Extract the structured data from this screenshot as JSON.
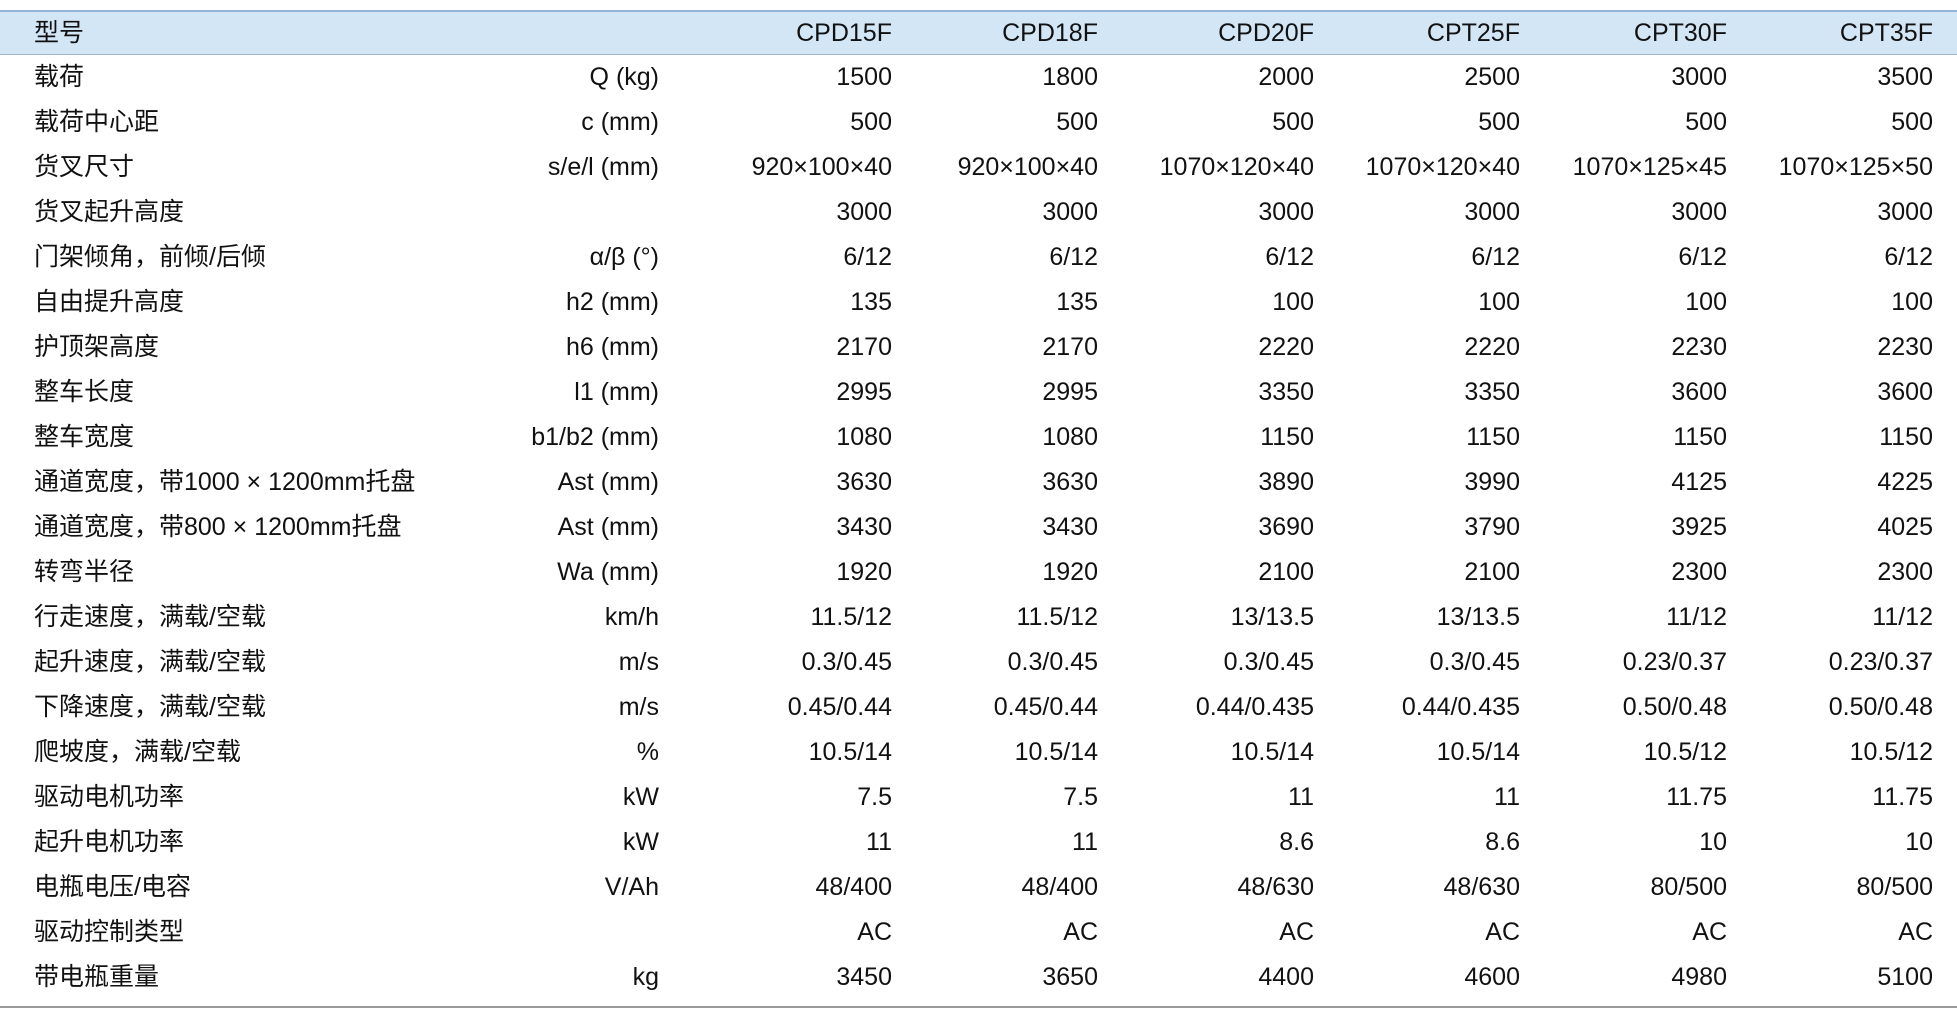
{
  "table": {
    "header": {
      "label": "型号",
      "models": [
        "CPD15F",
        "CPD18F",
        "CPD20F",
        "CPT25F",
        "CPT30F",
        "CPT35F"
      ]
    },
    "rows": [
      {
        "label": "载荷",
        "unit": "Q (kg)",
        "values": [
          "1500",
          "1800",
          "2000",
          "2500",
          "3000",
          "3500"
        ]
      },
      {
        "label": "载荷中心距",
        "unit": "c (mm)",
        "values": [
          "500",
          "500",
          "500",
          "500",
          "500",
          "500"
        ]
      },
      {
        "label": "货叉尺寸",
        "unit": "s/e/l (mm)",
        "values": [
          "920×100×40",
          "920×100×40",
          "1070×120×40",
          "1070×120×40",
          "1070×125×45",
          "1070×125×50"
        ]
      },
      {
        "label": "货叉起升高度",
        "values": [
          "3000",
          "3000",
          "3000",
          "3000",
          "3000",
          "3000"
        ]
      },
      {
        "label": "门架倾角，前倾/后倾",
        "unit": "α/β (°)",
        "values": [
          "6/12",
          "6/12",
          "6/12",
          "6/12",
          "6/12",
          "6/12"
        ]
      },
      {
        "label": "自由提升高度",
        "unit": "h2 (mm)",
        "values": [
          "135",
          "135",
          "100",
          "100",
          "100",
          "100"
        ]
      },
      {
        "label": "护顶架高度",
        "unit": "h6 (mm)",
        "values": [
          "2170",
          "2170",
          "2220",
          "2220",
          "2230",
          "2230"
        ]
      },
      {
        "label": "整车长度",
        "unit": "l1 (mm)",
        "values": [
          "2995",
          "2995",
          "3350",
          "3350",
          "3600",
          "3600"
        ]
      },
      {
        "label": "整车宽度",
        "unit": "b1/b2 (mm)",
        "values": [
          "1080",
          "1080",
          "1150",
          "1150",
          "1150",
          "1150"
        ]
      },
      {
        "label": "通道宽度，带1000 × 1200mm托盘",
        "unit": "Ast (mm)",
        "values": [
          "3630",
          "3630",
          "3890",
          "3990",
          "4125",
          "4225"
        ]
      },
      {
        "label": "通道宽度，带800 × 1200mm托盘",
        "unit": "Ast (mm)",
        "values": [
          "3430",
          "3430",
          "3690",
          "3790",
          "3925",
          "4025"
        ]
      },
      {
        "label": "转弯半径",
        "unit": "Wa (mm)",
        "values": [
          "1920",
          "1920",
          "2100",
          "2100",
          "2300",
          "2300"
        ]
      },
      {
        "label": "行走速度，满载/空载",
        "unit": "km/h",
        "values": [
          "11.5/12",
          "11.5/12",
          "13/13.5",
          "13/13.5",
          "11/12",
          "11/12"
        ]
      },
      {
        "label": "起升速度，满载/空载",
        "unit": "m/s",
        "values": [
          "0.3/0.45",
          "0.3/0.45",
          "0.3/0.45",
          "0.3/0.45",
          "0.23/0.37",
          "0.23/0.37"
        ]
      },
      {
        "label": "下降速度，满载/空载",
        "unit": "m/s",
        "values": [
          "0.45/0.44",
          "0.45/0.44",
          "0.44/0.435",
          "0.44/0.435",
          "0.50/0.48",
          "0.50/0.48"
        ]
      },
      {
        "label": "爬坡度，满载/空载",
        "unit": "%",
        "values": [
          "10.5/14",
          "10.5/14",
          "10.5/14",
          "10.5/14",
          "10.5/12",
          "10.5/12"
        ]
      },
      {
        "label": "驱动电机功率",
        "unit": "kW",
        "values": [
          "7.5",
          "7.5",
          "11",
          "11",
          "11.75",
          "11.75"
        ]
      },
      {
        "label": "起升电机功率",
        "unit": "kW",
        "values": [
          "11",
          "11",
          "8.6",
          "8.6",
          "10",
          "10"
        ]
      },
      {
        "label": "电瓶电压/电容",
        "unit": "V/Ah",
        "values": [
          "48/400",
          "48/400",
          "48/630",
          "48/630",
          "80/500",
          "80/500"
        ]
      },
      {
        "label": "驱动控制类型",
        "values": [
          "AC",
          "AC",
          "AC",
          "AC",
          "AC",
          "AC"
        ]
      },
      {
        "label": "带电瓶重量",
        "unit": "kg",
        "values": [
          "3450",
          "3650",
          "4400",
          "4600",
          "4980",
          "5100"
        ]
      }
    ]
  }
}
